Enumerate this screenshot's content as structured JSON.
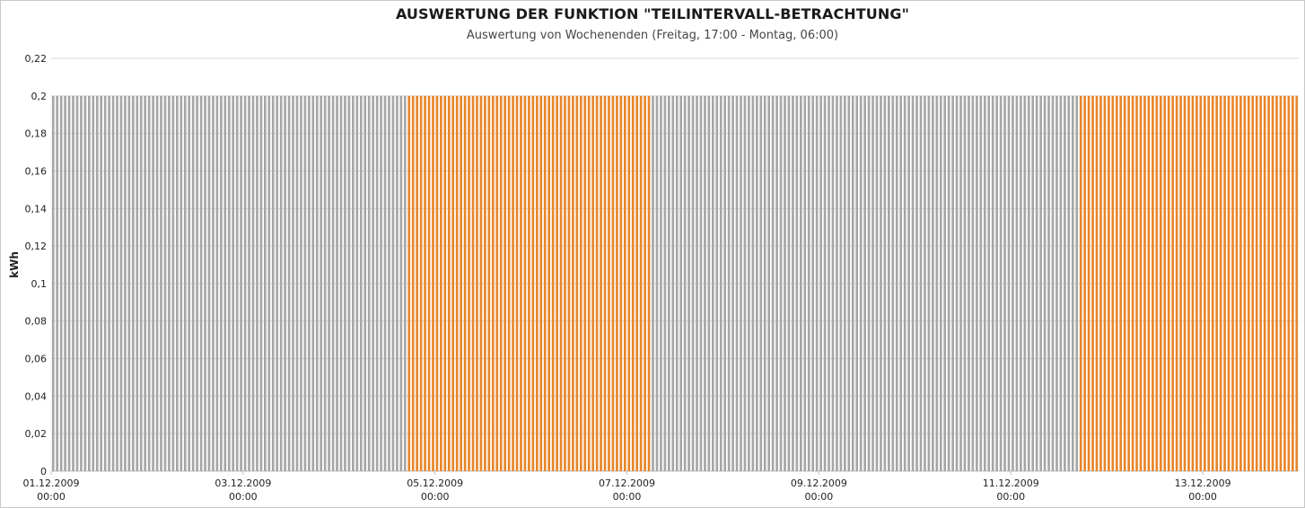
{
  "chart_data": {
    "type": "bar",
    "title": "AUSWERTUNG DER FUNKTION \"TEILINTERVALL-BETRACHTUNG\"",
    "subtitle": "Auswertung von Wochenenden (Freitag, 17:00 - Montag, 06:00)",
    "xlabel": "",
    "ylabel": "kWh",
    "ylim": [
      0,
      0.22
    ],
    "y_ticks": [
      "0",
      "0,02",
      "0,04",
      "0,06",
      "0,08",
      "0,1",
      "0,12",
      "0,14",
      "0,16",
      "0,18",
      "0,2",
      "0,22"
    ],
    "x_ticks": [
      {
        "date": "01.12.2009",
        "time": "00:00"
      },
      {
        "date": "03.12.2009",
        "time": "00:00"
      },
      {
        "date": "05.12.2009",
        "time": "00:00"
      },
      {
        "date": "07.12.2009",
        "time": "00:00"
      },
      {
        "date": "09.12.2009",
        "time": "00:00"
      },
      {
        "date": "11.12.2009",
        "time": "00:00"
      },
      {
        "date": "13.12.2009",
        "time": "00:00"
      }
    ],
    "x_range": [
      "01.12.2009 00:00",
      "14.12.2009 00:00"
    ],
    "bar_interval": "1 h",
    "bar_value": 0.2,
    "highlight_periods": [
      {
        "start": "04.12.2009 17:00",
        "end": "07.12.2009 06:00"
      },
      {
        "start": "11.12.2009 17:00",
        "end": "14.12.2009 00:00"
      }
    ],
    "colors": {
      "base": "#a6a6a6",
      "highlight": "#e8862a",
      "grid": "#d9d9d9",
      "axis": "#bfbfbf"
    },
    "grid": true,
    "legend": "none"
  }
}
